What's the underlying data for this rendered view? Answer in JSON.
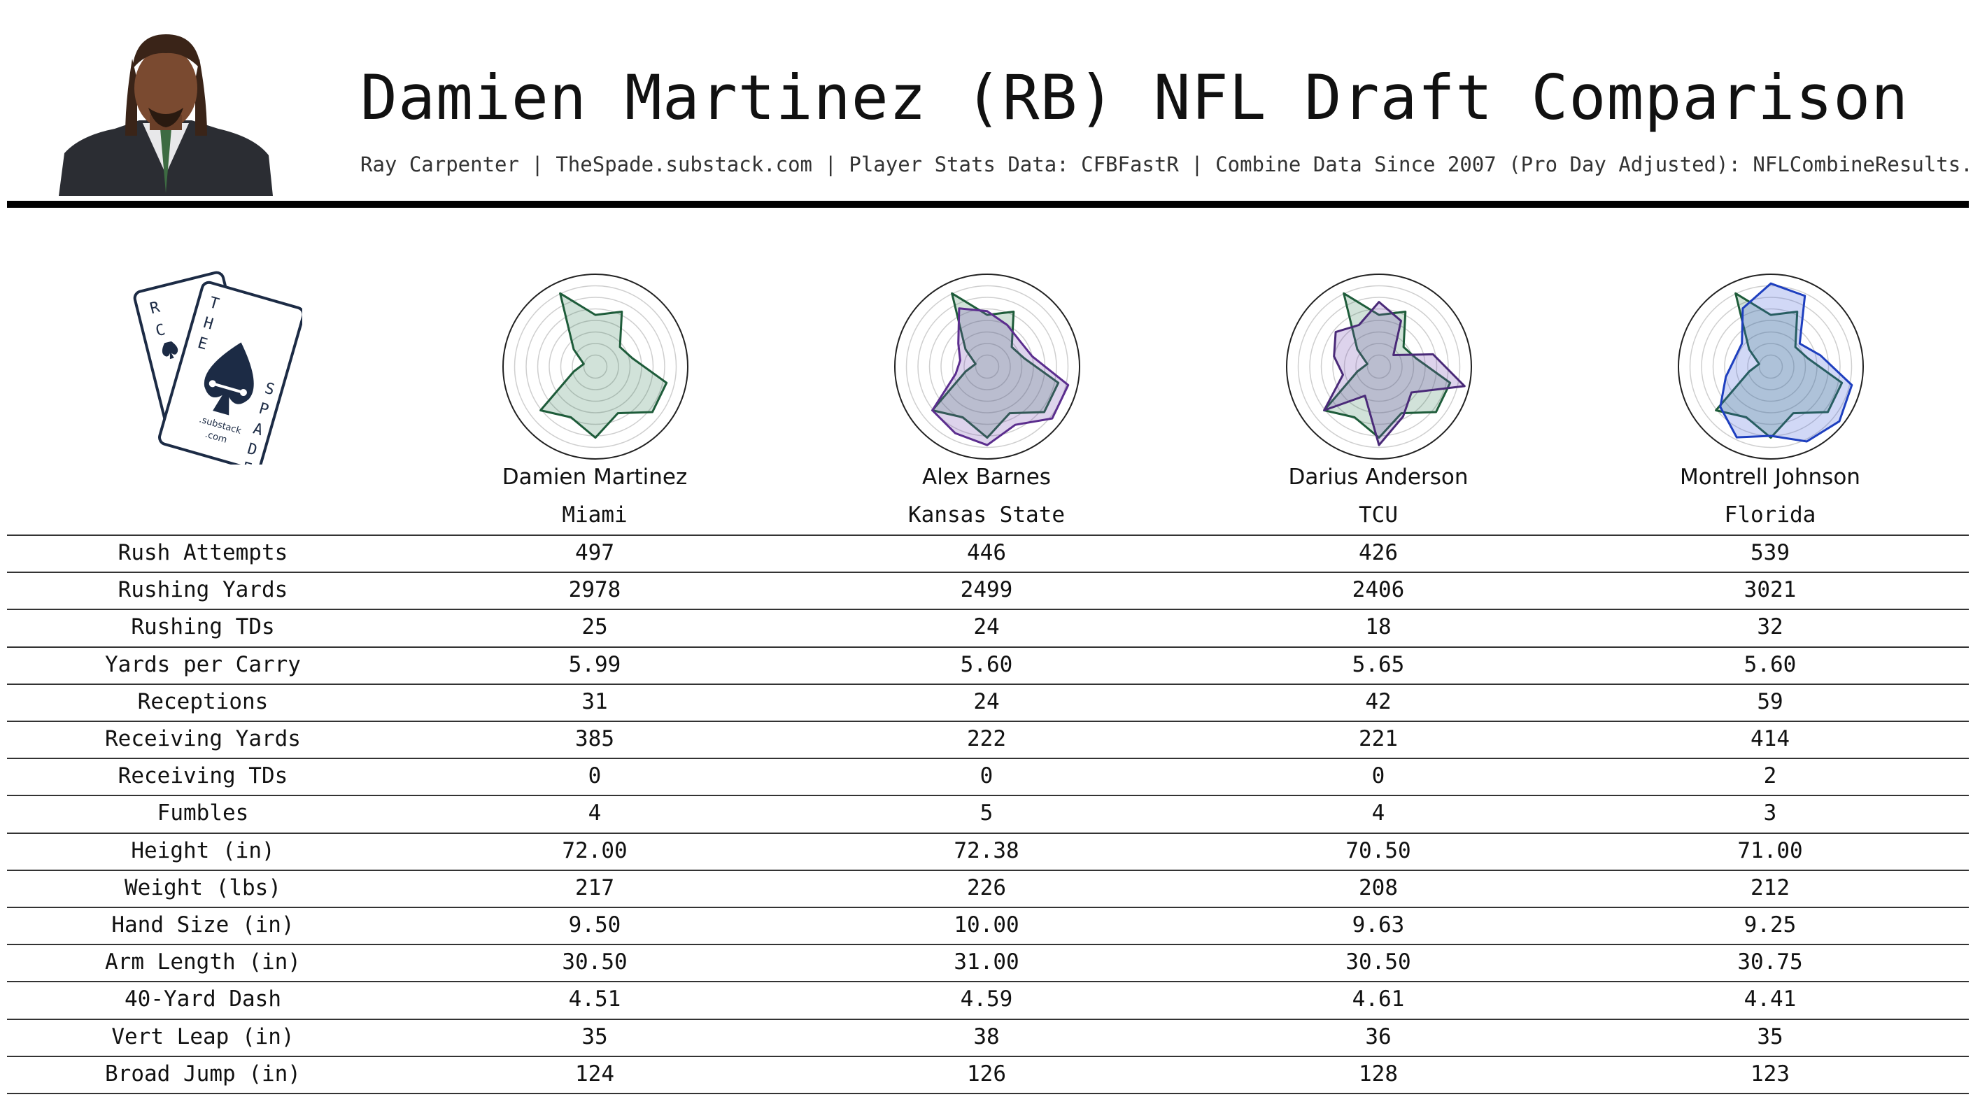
{
  "header": {
    "title": "Damien Martinez (RB) NFL Draft Comparison",
    "subtitle": "Ray Carpenter | TheSpade.substack.com | Player Stats Data: CFBFastR | Combine Data Since 2007 (Pro Day Adjusted): NFLCombineResults.com"
  },
  "logo": {
    "lettering": [
      "R",
      "C",
      "T",
      "H",
      "E",
      "S",
      "P",
      "A",
      "D",
      "E",
      ".substack",
      ".com"
    ],
    "color": "#1c2b45"
  },
  "players": [
    {
      "name": "Damien Martinez",
      "school": "Miami",
      "color": "#1e5c3a"
    },
    {
      "name": "Alex Barnes",
      "school": "Kansas State",
      "color": "#5b2d8e"
    },
    {
      "name": "Darius Anderson",
      "school": "TCU",
      "color": "#4a2a78"
    },
    {
      "name": "Montrell Johnson",
      "school": "Florida",
      "color": "#1e3fbf"
    }
  ],
  "chart_data": [
    {
      "type": "radar",
      "player": "Damien Martinez",
      "series": [
        {
          "name": "Damien Martinez",
          "values": [
            0.56,
            0.66,
            0.34,
            0.41,
            0.79,
            0.79,
            0.56,
            0.77,
            0.61,
            0.76,
            0.24,
            0.13,
            0.3,
            0.88
          ]
        }
      ]
    },
    {
      "type": "radar",
      "player": "Alex Barnes",
      "series": [
        {
          "name": "Damien Martinez",
          "values": [
            0.56,
            0.66,
            0.34,
            0.41,
            0.79,
            0.79,
            0.56,
            0.77,
            0.61,
            0.76,
            0.24,
            0.13,
            0.3,
            0.88
          ]
        },
        {
          "name": "Alex Barnes",
          "values": [
            0.6,
            0.5,
            0.45,
            0.5,
            0.9,
            0.9,
            0.7,
            0.85,
            0.8,
            0.76,
            0.35,
            0.3,
            0.4,
            0.7
          ]
        }
      ]
    },
    {
      "type": "radar",
      "player": "Darius Anderson",
      "series": [
        {
          "name": "Damien Martinez",
          "values": [
            0.56,
            0.66,
            0.34,
            0.41,
            0.79,
            0.79,
            0.56,
            0.77,
            0.61,
            0.76,
            0.24,
            0.13,
            0.3,
            0.88
          ]
        },
        {
          "name": "Darius Anderson",
          "values": [
            0.7,
            0.55,
            0.2,
            0.6,
            0.95,
            0.45,
            0.6,
            0.85,
            0.35,
            0.76,
            0.4,
            0.5,
            0.6,
            0.5
          ]
        }
      ]
    },
    {
      "type": "radar",
      "player": "Montrell Johnson",
      "series": [
        {
          "name": "Damien Martinez",
          "values": [
            0.56,
            0.66,
            0.34,
            0.41,
            0.79,
            0.79,
            0.56,
            0.77,
            0.61,
            0.76,
            0.24,
            0.13,
            0.3,
            0.88
          ]
        },
        {
          "name": "Montrell Johnson",
          "values": [
            0.9,
            0.85,
            0.4,
            0.55,
            0.9,
            0.95,
            0.9,
            0.75,
            0.85,
            0.7,
            0.5,
            0.4,
            0.4,
            0.7
          ]
        }
      ]
    }
  ],
  "table": {
    "rows": [
      {
        "label": "Rush Attempts",
        "values": [
          "497",
          "446",
          "426",
          "539"
        ]
      },
      {
        "label": "Rushing Yards",
        "values": [
          "2978",
          "2499",
          "2406",
          "3021"
        ]
      },
      {
        "label": "Rushing TDs",
        "values": [
          "25",
          "24",
          "18",
          "32"
        ]
      },
      {
        "label": "Yards per Carry",
        "values": [
          "5.99",
          "5.60",
          "5.65",
          "5.60"
        ]
      },
      {
        "label": "Receptions",
        "values": [
          "31",
          "24",
          "42",
          "59"
        ]
      },
      {
        "label": "Receiving Yards",
        "values": [
          "385",
          "222",
          "221",
          "414"
        ]
      },
      {
        "label": "Receiving TDs",
        "values": [
          "0",
          "0",
          "0",
          "2"
        ]
      },
      {
        "label": "Fumbles",
        "values": [
          "4",
          "5",
          "4",
          "3"
        ]
      },
      {
        "label": "Height (in)",
        "values": [
          "72.00",
          "72.38",
          "70.50",
          "71.00"
        ]
      },
      {
        "label": "Weight (lbs)",
        "values": [
          "217",
          "226",
          "208",
          "212"
        ]
      },
      {
        "label": "Hand Size (in)",
        "values": [
          "9.50",
          "10.00",
          "9.63",
          "9.25"
        ]
      },
      {
        "label": "Arm Length (in)",
        "values": [
          "30.50",
          "31.00",
          "30.50",
          "30.75"
        ]
      },
      {
        "label": "40-Yard Dash",
        "values": [
          "4.51",
          "4.59",
          "4.61",
          "4.41"
        ]
      },
      {
        "label": "Vert Leap (in)",
        "values": [
          "35",
          "38",
          "36",
          "35"
        ]
      },
      {
        "label": "Broad Jump (in)",
        "values": [
          "124",
          "126",
          "128",
          "123"
        ]
      }
    ]
  }
}
